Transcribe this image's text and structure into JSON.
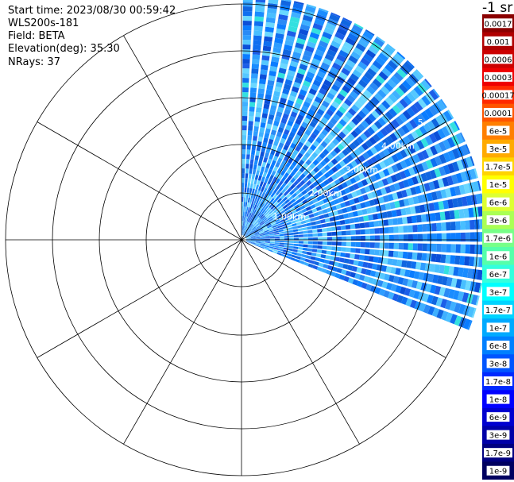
{
  "info": {
    "start_time": "Start time: 2023/08/30 00:59:42",
    "instrument": "WLS200s-181",
    "field": "Field: BETA",
    "elevation": "Elevation(deg): 35.30",
    "nrays": "NRays: 37"
  },
  "ring_labels": [
    "1.00km",
    "2.00km",
    "3.00km",
    "4.00km",
    "5."
  ],
  "colorbar": {
    "title": "-1 sr",
    "labels": [
      "0.0017",
      "0.001",
      "0.0006",
      "0.0003",
      "0.00017",
      "0.0001",
      "6e-5",
      "3e-5",
      "1.7e-5",
      "1e-5",
      "6e-6",
      "3e-6",
      "1.7e-6",
      "1e-6",
      "6e-7",
      "3e-7",
      "1.7e-7",
      "1e-7",
      "6e-8",
      "3e-8",
      "1.7e-8",
      "1e-8",
      "6e-9",
      "3e-9",
      "1.7e-9",
      "1e-9"
    ],
    "colors": [
      "#8b0000",
      "#b00000",
      "#cc0000",
      "#ee0000",
      "#ff2a00",
      "#ff5500",
      "#ff7f00",
      "#ffaa00",
      "#ffd400",
      "#ffff00",
      "#ddff33",
      "#aaff55",
      "#77ff88",
      "#55ffaa",
      "#33ffdd",
      "#00ffff",
      "#00d4ff",
      "#00aaff",
      "#0080ff",
      "#0055ff",
      "#002aff",
      "#0000ff",
      "#0000d0",
      "#0000a8",
      "#000080",
      "#000060"
    ]
  }
}
